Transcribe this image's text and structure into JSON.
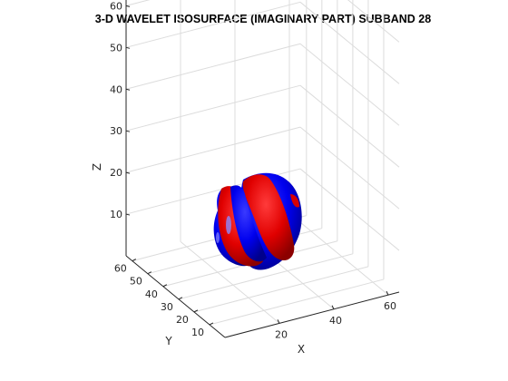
{
  "chart_data": {
    "type": "isosurface-3d",
    "title": "3-D WAVELET ISOSURFACE (IMAGINARY PART) SUBBAND 28",
    "xlabel": "X",
    "ylabel": "Y",
    "zlabel": "Z",
    "xlim": [
      0,
      64
    ],
    "ylim": [
      0,
      64
    ],
    "zlim": [
      0,
      64
    ],
    "x_ticks": [
      "20",
      "40",
      "60"
    ],
    "y_ticks": [
      "10",
      "20",
      "30",
      "40",
      "50",
      "60"
    ],
    "z_ticks": [
      "10",
      "20",
      "30",
      "40",
      "50",
      "60"
    ],
    "grid": true,
    "series": [
      {
        "color": "#ff0000"
      },
      {
        "color": "#0000ff"
      }
    ]
  }
}
